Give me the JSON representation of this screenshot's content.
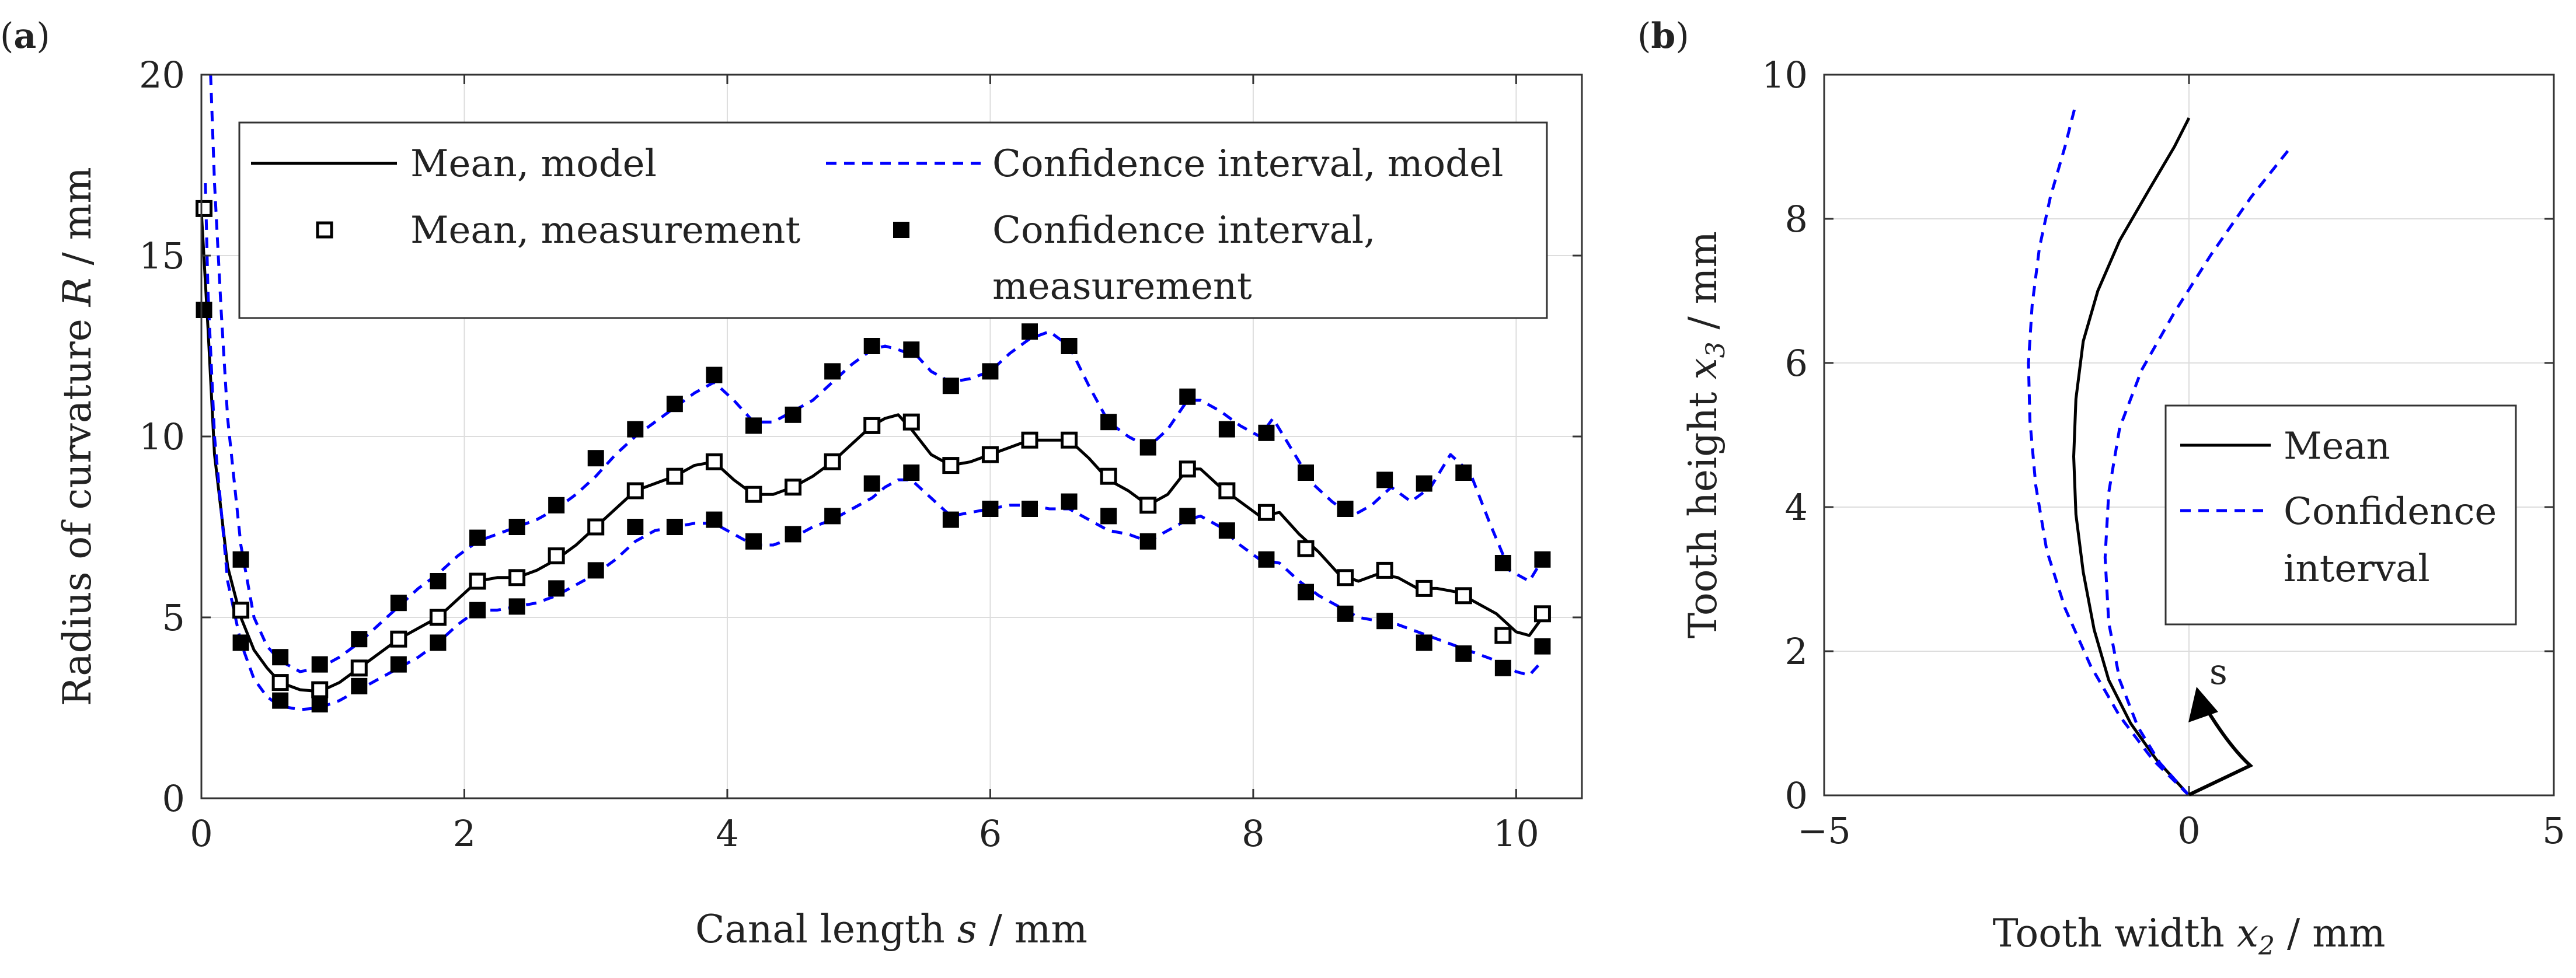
{
  "chart_data": [
    {
      "panel_label": "(a)",
      "panel_letter": "a",
      "type": "line",
      "xlabel": "Canal length s / mm",
      "ylabel": "Radius of curvature R / mm",
      "xlim": [
        0,
        10.5
      ],
      "ylim": [
        0,
        20
      ],
      "xticks": [
        "0",
        "2",
        "4",
        "6",
        "8",
        "10"
      ],
      "yticks": [
        "0",
        "5",
        "10",
        "15",
        "20"
      ],
      "grid": true,
      "legend_position": "top",
      "legend": {
        "mean_model": "Mean, model",
        "ci_model": "Confidence interval, model",
        "mean_meas": "Mean, measurement",
        "ci_meas_line1": "Confidence interval,",
        "ci_meas_line2": "measurement"
      },
      "series": [
        {
          "name": "Mean, model",
          "style": "solid",
          "color": "#000000",
          "x": [
            0.0,
            0.05,
            0.1,
            0.2,
            0.3,
            0.4,
            0.5,
            0.6,
            0.75,
            0.9,
            1.05,
            1.2,
            1.35,
            1.5,
            1.65,
            1.8,
            1.95,
            2.1,
            2.25,
            2.4,
            2.55,
            2.7,
            2.85,
            3.0,
            3.15,
            3.3,
            3.45,
            3.6,
            3.75,
            3.9,
            4.05,
            4.2,
            4.35,
            4.5,
            4.65,
            4.8,
            4.95,
            5.1,
            5.2,
            5.3,
            5.4,
            5.55,
            5.7,
            5.85,
            6.0,
            6.15,
            6.3,
            6.45,
            6.6,
            6.75,
            6.9,
            7.05,
            7.2,
            7.35,
            7.5,
            7.6,
            7.75,
            7.9,
            8.05,
            8.2,
            8.35,
            8.5,
            8.65,
            8.8,
            8.95,
            9.1,
            9.25,
            9.4,
            9.55,
            9.7,
            9.85,
            10.0,
            10.1,
            10.2
          ],
          "y": [
            16.2,
            13.0,
            9.5,
            6.4,
            5.0,
            4.1,
            3.6,
            3.2,
            3.0,
            2.95,
            3.2,
            3.6,
            4.0,
            4.4,
            4.7,
            5.0,
            5.5,
            6.0,
            6.1,
            6.1,
            6.3,
            6.6,
            7.0,
            7.5,
            8.0,
            8.5,
            8.7,
            8.9,
            9.2,
            9.3,
            8.8,
            8.4,
            8.4,
            8.6,
            8.9,
            9.3,
            9.8,
            10.3,
            10.5,
            10.6,
            10.2,
            9.5,
            9.2,
            9.3,
            9.5,
            9.7,
            9.9,
            9.9,
            9.9,
            9.4,
            8.8,
            8.5,
            8.1,
            8.4,
            9.1,
            9.1,
            8.6,
            8.2,
            7.8,
            7.9,
            7.3,
            6.8,
            6.2,
            6.0,
            6.2,
            6.1,
            5.8,
            5.8,
            5.7,
            5.4,
            5.1,
            4.6,
            4.5,
            5.0
          ]
        },
        {
          "name": "Confidence interval, model",
          "style": "dashed",
          "color": "#0000ff",
          "x": [
            0.07,
            0.1,
            0.15,
            0.2,
            0.3,
            0.4,
            0.5,
            0.6,
            0.75,
            0.9,
            1.05,
            1.2,
            1.35,
            1.5,
            1.65,
            1.8,
            1.95,
            2.1,
            2.25,
            2.4,
            2.55,
            2.7,
            2.85,
            3.0,
            3.15,
            3.3,
            3.45,
            3.6,
            3.75,
            3.9,
            4.05,
            4.2,
            4.35,
            4.5,
            4.65,
            4.8,
            4.95,
            5.1,
            5.2,
            5.3,
            5.45,
            5.55,
            5.7,
            5.85,
            6.0,
            6.15,
            6.3,
            6.45,
            6.6,
            6.75,
            6.9,
            7.05,
            7.2,
            7.35,
            7.5,
            7.6,
            7.75,
            7.9,
            8.05,
            8.15,
            8.3,
            8.45,
            8.6,
            8.75,
            8.9,
            9.05,
            9.2,
            9.35,
            9.5,
            9.65,
            9.8,
            9.95,
            10.1,
            10.2
          ],
          "y": [
            20.0,
            17.0,
            13.5,
            10.5,
            7.0,
            5.0,
            4.2,
            3.8,
            3.5,
            3.6,
            3.9,
            4.3,
            4.8,
            5.3,
            5.8,
            6.2,
            6.7,
            7.1,
            7.3,
            7.5,
            7.7,
            8.0,
            8.4,
            8.9,
            9.5,
            10.0,
            10.4,
            10.8,
            11.2,
            11.5,
            11.0,
            10.4,
            10.4,
            10.7,
            11.0,
            11.5,
            12.0,
            12.4,
            12.5,
            12.4,
            12.2,
            11.8,
            11.5,
            11.6,
            11.8,
            12.3,
            12.7,
            12.9,
            12.5,
            11.4,
            10.4,
            10.0,
            9.7,
            10.2,
            11.0,
            11.0,
            10.7,
            10.3,
            10.0,
            10.5,
            9.6,
            8.7,
            8.2,
            7.8,
            8.1,
            8.6,
            8.2,
            8.6,
            9.5,
            9.0,
            7.6,
            6.3,
            6.0,
            6.6
          ]
        },
        {
          "name": "Confidence interval, model",
          "style": "dashed",
          "color": "#0000ff",
          "x": [
            0.03,
            0.05,
            0.1,
            0.2,
            0.3,
            0.4,
            0.5,
            0.6,
            0.75,
            0.9,
            1.05,
            1.2,
            1.35,
            1.5,
            1.65,
            1.8,
            1.95,
            2.1,
            2.25,
            2.4,
            2.55,
            2.7,
            2.85,
            3.0,
            3.15,
            3.3,
            3.45,
            3.6,
            3.75,
            3.9,
            4.05,
            4.2,
            4.35,
            4.5,
            4.65,
            4.8,
            4.95,
            5.1,
            5.2,
            5.3,
            5.4,
            5.55,
            5.7,
            5.85,
            6.0,
            6.15,
            6.3,
            6.45,
            6.6,
            6.75,
            6.9,
            7.05,
            7.2,
            7.35,
            7.5,
            7.6,
            7.75,
            7.9,
            8.05,
            8.2,
            8.35,
            8.5,
            8.65,
            8.8,
            8.95,
            9.1,
            9.25,
            9.4,
            9.55,
            9.7,
            9.85,
            10.0,
            10.1,
            10.2
          ],
          "y": [
            17.0,
            14.0,
            10.0,
            6.0,
            4.3,
            3.3,
            2.8,
            2.55,
            2.45,
            2.5,
            2.7,
            3.0,
            3.3,
            3.6,
            3.9,
            4.3,
            4.8,
            5.2,
            5.2,
            5.3,
            5.4,
            5.6,
            5.9,
            6.2,
            6.6,
            7.1,
            7.4,
            7.5,
            7.6,
            7.6,
            7.3,
            7.0,
            7.0,
            7.2,
            7.5,
            7.7,
            8.0,
            8.3,
            8.6,
            8.8,
            8.8,
            8.3,
            7.8,
            7.9,
            8.0,
            8.1,
            8.1,
            8.0,
            8.0,
            7.7,
            7.4,
            7.3,
            7.1,
            7.4,
            7.7,
            7.8,
            7.5,
            7.0,
            6.6,
            6.5,
            6.0,
            5.6,
            5.3,
            5.0,
            4.9,
            4.8,
            4.6,
            4.4,
            4.2,
            4.0,
            3.8,
            3.5,
            3.4,
            3.8
          ]
        },
        {
          "name": "Mean, measurement",
          "style": "open-square",
          "color": "#000000",
          "x": [
            0.02,
            0.3,
            0.6,
            0.9,
            1.2,
            1.5,
            1.8,
            2.1,
            2.4,
            2.7,
            3.0,
            3.3,
            3.6,
            3.9,
            4.2,
            4.5,
            4.8,
            5.1,
            5.4,
            5.7,
            6.0,
            6.3,
            6.6,
            6.9,
            7.2,
            7.5,
            7.8,
            8.1,
            8.4,
            8.7,
            9.0,
            9.3,
            9.6,
            9.9,
            10.2
          ],
          "y": [
            16.3,
            5.2,
            3.2,
            3.0,
            3.6,
            4.4,
            5.0,
            6.0,
            6.1,
            6.7,
            7.5,
            8.5,
            8.9,
            9.3,
            8.4,
            8.6,
            9.3,
            10.3,
            10.4,
            9.2,
            9.5,
            9.9,
            9.9,
            8.9,
            8.1,
            9.1,
            8.5,
            7.9,
            6.9,
            6.1,
            6.3,
            5.8,
            5.6,
            4.5,
            5.1
          ]
        },
        {
          "name": "Confidence interval, measurement",
          "style": "filled-square",
          "color": "#000000",
          "x": [
            0.02,
            0.3,
            0.6,
            0.9,
            1.2,
            1.5,
            1.8,
            2.1,
            2.4,
            2.7,
            3.0,
            3.3,
            3.6,
            3.9,
            4.2,
            4.5,
            4.8,
            5.1,
            5.4,
            5.7,
            6.0,
            6.3,
            6.6,
            6.9,
            7.2,
            7.5,
            7.8,
            8.1,
            8.4,
            8.7,
            9.0,
            9.3,
            9.6,
            9.9,
            10.2
          ],
          "y": [
            13.5,
            6.6,
            3.9,
            3.7,
            4.4,
            5.4,
            6.0,
            7.2,
            7.5,
            8.1,
            9.4,
            10.2,
            10.9,
            11.7,
            10.3,
            10.6,
            11.8,
            12.5,
            12.4,
            11.4,
            11.8,
            12.9,
            12.5,
            10.4,
            9.7,
            11.1,
            10.2,
            10.1,
            9.0,
            8.0,
            8.8,
            8.7,
            9.0,
            6.5,
            6.6
          ]
        },
        {
          "name": "Confidence interval, measurement",
          "style": "filled-square",
          "color": "#000000",
          "x": [
            0.02,
            0.3,
            0.6,
            0.9,
            1.2,
            1.5,
            1.8,
            2.1,
            2.4,
            2.7,
            3.0,
            3.3,
            3.6,
            3.9,
            4.2,
            4.5,
            4.8,
            5.1,
            5.4,
            5.7,
            6.0,
            6.3,
            6.6,
            6.9,
            7.2,
            7.5,
            7.8,
            8.1,
            8.4,
            8.7,
            9.0,
            9.3,
            9.6,
            9.9,
            10.2
          ],
          "y": [
            13.5,
            4.3,
            2.7,
            2.6,
            3.1,
            3.7,
            4.3,
            5.2,
            5.3,
            5.8,
            6.3,
            7.5,
            7.5,
            7.7,
            7.1,
            7.3,
            7.8,
            8.7,
            9.0,
            7.7,
            8.0,
            8.0,
            8.2,
            7.8,
            7.1,
            7.8,
            7.4,
            6.6,
            5.7,
            5.1,
            4.9,
            4.3,
            4.0,
            3.6,
            4.2
          ]
        }
      ]
    },
    {
      "panel_label": "(b)",
      "panel_letter": "b",
      "type": "line",
      "xlabel": "Tooth width x2 / mm",
      "ylabel": "Tooth height x3 / mm",
      "xlim": [
        -5,
        5
      ],
      "ylim": [
        0,
        10
      ],
      "xticks": [
        "−5",
        "0",
        "5"
      ],
      "yticks": [
        "0",
        "2",
        "4",
        "6",
        "8",
        "10"
      ],
      "grid": true,
      "legend_position": "right",
      "legend": {
        "mean": "Mean",
        "ci_line1": "Confidence",
        "ci_line2": "interval"
      },
      "arrow_label": "s",
      "series": [
        {
          "name": "Mean",
          "style": "solid",
          "color": "#000000",
          "x": [
            0.0,
            -0.45,
            -0.8,
            -1.1,
            -1.3,
            -1.45,
            -1.55,
            -1.58,
            -1.55,
            -1.45,
            -1.25,
            -0.95,
            -0.55,
            -0.2,
            0.0
          ],
          "y": [
            0.0,
            0.5,
            1.0,
            1.6,
            2.3,
            3.1,
            3.9,
            4.7,
            5.5,
            6.3,
            7.0,
            7.7,
            8.4,
            9.0,
            9.4
          ]
        },
        {
          "name": "Confidence interval",
          "style": "dashed",
          "color": "#0000ff",
          "x": [
            0.0,
            -0.5,
            -0.95,
            -1.35,
            -1.7,
            -1.95,
            -2.1,
            -2.18,
            -2.2,
            -2.15,
            -2.05,
            -1.9,
            -1.7,
            -1.55
          ],
          "y": [
            0.0,
            0.5,
            1.1,
            1.8,
            2.6,
            3.4,
            4.3,
            5.2,
            6.0,
            6.8,
            7.6,
            8.3,
            9.0,
            9.6
          ]
        },
        {
          "name": "Confidence interval",
          "style": "dashed",
          "color": "#0000ff",
          "x": [
            0.0,
            -0.4,
            -0.7,
            -0.95,
            -1.1,
            -1.15,
            -1.1,
            -0.95,
            -0.65,
            -0.2,
            0.3,
            0.85,
            1.4
          ],
          "y": [
            0.0,
            0.45,
            0.95,
            1.6,
            2.4,
            3.3,
            4.2,
            5.1,
            5.9,
            6.7,
            7.5,
            8.3,
            9.0
          ]
        }
      ]
    }
  ]
}
